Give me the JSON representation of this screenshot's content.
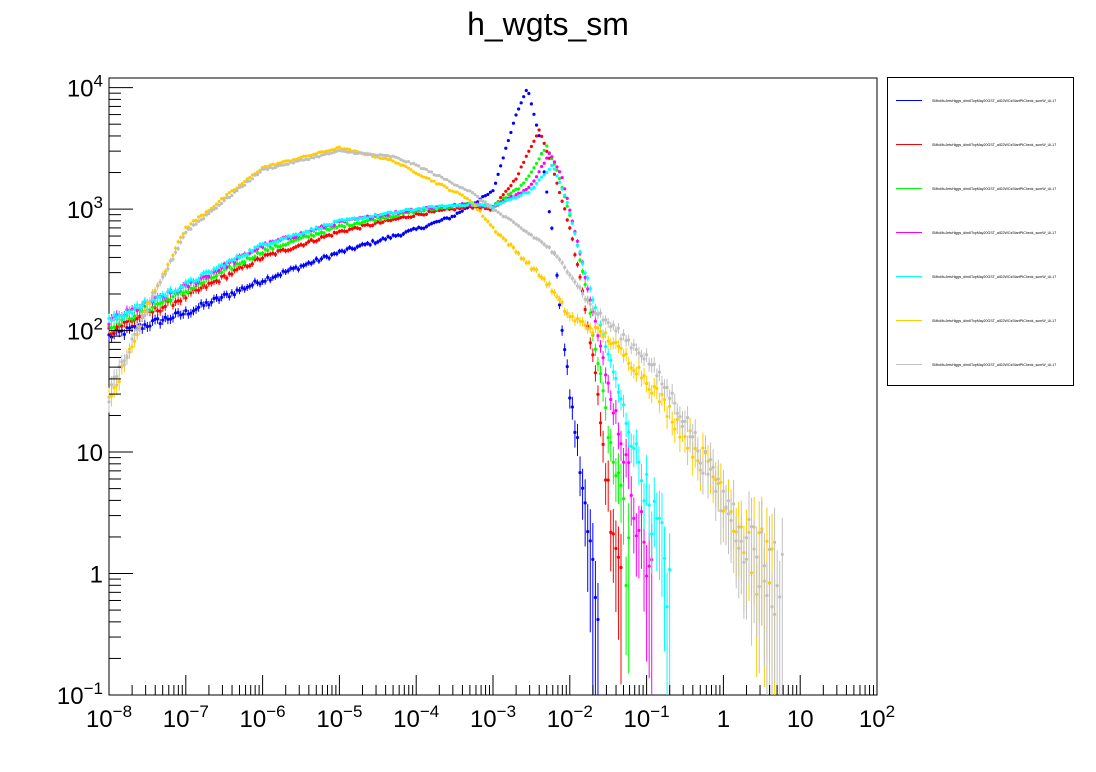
{
  "chart_data": {
    "type": "scatter",
    "title": "h_wgts_sm",
    "xlabel": "",
    "ylabel": "",
    "xscale": "log",
    "yscale": "log",
    "xlim": [
      1e-08,
      100
    ],
    "ylim": [
      0.1,
      12000
    ],
    "x_ticks": [
      {
        "value": 1e-08,
        "label": "10^-8"
      },
      {
        "value": 1e-07,
        "label": "10^-7"
      },
      {
        "value": 1e-06,
        "label": "10^-6"
      },
      {
        "value": 1e-05,
        "label": "10^-5"
      },
      {
        "value": 0.0001,
        "label": "10^-4"
      },
      {
        "value": 0.001,
        "label": "10^-3"
      },
      {
        "value": 0.01,
        "label": "10^-2"
      },
      {
        "value": 0.1,
        "label": "10^-1"
      },
      {
        "value": 1,
        "label": "1"
      },
      {
        "value": 10,
        "label": "10"
      },
      {
        "value": 100,
        "label": "10^2"
      }
    ],
    "y_ticks": [
      {
        "value": 0.1,
        "label": "10^-1"
      },
      {
        "value": 1,
        "label": "1"
      },
      {
        "value": 10,
        "label": "10"
      },
      {
        "value": 100,
        "label": "10^2"
      },
      {
        "value": 1000,
        "label": "10^3"
      },
      {
        "value": 10000,
        "label": "10^4"
      }
    ],
    "grid": false,
    "legend_position": "right",
    "series": [
      {
        "name": "SMtoMuJetsHiggs_dim6TopMay20GST_all22WCsStartPtCheck_sumW_UL17",
        "color": "#0000ff",
        "points": [
          [
            1e-08,
            90
          ],
          [
            1e-07,
            140
          ],
          [
            1e-06,
            260
          ],
          [
            1e-05,
            440
          ],
          [
            0.0001,
            680
          ],
          [
            0.0003,
            870
          ],
          [
            0.001,
            1400
          ],
          [
            0.002,
            6000
          ],
          [
            0.0028,
            10000
          ],
          [
            0.004,
            4000
          ],
          [
            0.006,
            600
          ],
          [
            0.008,
            100
          ],
          [
            0.01,
            30
          ],
          [
            0.013,
            10
          ],
          [
            0.016,
            3
          ],
          [
            0.02,
            1
          ],
          [
            0.025,
            1
          ]
        ]
      },
      {
        "name": "SMtoMuJetsHiggs_dim6TopMay20GST_all22WCsStartPtCheck_sumW_UL17",
        "color": "#ff0000",
        "points": [
          [
            1e-08,
            100
          ],
          [
            1e-07,
            190
          ],
          [
            1e-06,
            400
          ],
          [
            1e-05,
            650
          ],
          [
            0.0001,
            900
          ],
          [
            0.0005,
            1050
          ],
          [
            0.001,
            1000
          ],
          [
            0.002,
            1800
          ],
          [
            0.004,
            4500
          ],
          [
            0.006,
            2200
          ],
          [
            0.01,
            700
          ],
          [
            0.015,
            200
          ],
          [
            0.02,
            60
          ],
          [
            0.025,
            20
          ],
          [
            0.03,
            6
          ],
          [
            0.04,
            2
          ],
          [
            0.05,
            1
          ]
        ]
      },
      {
        "name": "SMtoMuJetsHiggs_dim6TopMay20GST_all22WCsStartPtCheck_sumW_UL17",
        "color": "#00ff00",
        "points": [
          [
            1e-08,
            110
          ],
          [
            1e-07,
            210
          ],
          [
            1e-06,
            450
          ],
          [
            1e-05,
            720
          ],
          [
            0.0001,
            960
          ],
          [
            0.0005,
            1100
          ],
          [
            0.001,
            1050
          ],
          [
            0.0025,
            1600
          ],
          [
            0.005,
            3300
          ],
          [
            0.007,
            2000
          ],
          [
            0.012,
            600
          ],
          [
            0.018,
            150
          ],
          [
            0.025,
            40
          ],
          [
            0.035,
            10
          ],
          [
            0.05,
            3
          ],
          [
            0.06,
            1
          ]
        ]
      },
      {
        "name": "SMtoMuJetsHiggs_dim6TopMay20GST_all22WCsStartPtCheck_sumW_UL17",
        "color": "#ff00ff",
        "points": [
          [
            1e-08,
            120
          ],
          [
            1e-07,
            230
          ],
          [
            1e-06,
            500
          ],
          [
            1e-05,
            780
          ],
          [
            0.0001,
            1000
          ],
          [
            0.0005,
            1100
          ],
          [
            0.001,
            1050
          ],
          [
            0.003,
            1500
          ],
          [
            0.0055,
            2900
          ],
          [
            0.008,
            1800
          ],
          [
            0.013,
            500
          ],
          [
            0.02,
            150
          ],
          [
            0.03,
            40
          ],
          [
            0.04,
            20
          ],
          [
            0.06,
            6
          ],
          [
            0.09,
            2
          ],
          [
            0.12,
            1
          ]
        ]
      },
      {
        "name": "SMtoMuJetsHiggs_dim6TopMay20GST_all22WCsStartPtCheck_sumW_UL17",
        "color": "#00ffff",
        "points": [
          [
            1e-08,
            120
          ],
          [
            1e-07,
            240
          ],
          [
            1e-06,
            510
          ],
          [
            1e-05,
            790
          ],
          [
            0.0001,
            1000
          ],
          [
            0.0005,
            1100
          ],
          [
            0.001,
            1050
          ],
          [
            0.003,
            1400
          ],
          [
            0.006,
            2300
          ],
          [
            0.009,
            1200
          ],
          [
            0.014,
            400
          ],
          [
            0.022,
            150
          ],
          [
            0.035,
            50
          ],
          [
            0.06,
            15
          ],
          [
            0.1,
            5
          ],
          [
            0.15,
            2
          ],
          [
            0.2,
            1
          ]
        ]
      },
      {
        "name": "SMtoMuJetsHiggs_dim6TopMay20GST_all22WCsStartPtCheck_sumW_UL17",
        "color": "#ffcc00",
        "points": [
          [
            1e-08,
            25
          ],
          [
            3e-08,
            150
          ],
          [
            1e-07,
            700
          ],
          [
            1e-06,
            2200
          ],
          [
            1e-05,
            3200
          ],
          [
            5e-05,
            2500
          ],
          [
            0.0001,
            2000
          ],
          [
            0.0005,
            1200
          ],
          [
            0.001,
            700
          ],
          [
            0.005,
            250
          ],
          [
            0.01,
            130
          ],
          [
            0.03,
            90
          ],
          [
            0.1,
            40
          ],
          [
            0.3,
            15
          ],
          [
            1,
            5
          ],
          [
            2,
            2
          ],
          [
            5,
            1
          ]
        ]
      },
      {
        "name": "SMtoMuJetsHiggs_dim6TopMay20GST_all22WCsStartPtCheck_sumW_UL17",
        "color": "#c0c0c0",
        "points": [
          [
            1e-08,
            30
          ],
          [
            3e-08,
            140
          ],
          [
            1e-07,
            650
          ],
          [
            1e-06,
            2100
          ],
          [
            1e-05,
            3000
          ],
          [
            5e-05,
            2700
          ],
          [
            0.0001,
            2300
          ],
          [
            0.0005,
            1400
          ],
          [
            0.001,
            1000
          ],
          [
            0.005,
            500
          ],
          [
            0.01,
            300
          ],
          [
            0.02,
            150
          ],
          [
            0.1,
            60
          ],
          [
            0.3,
            20
          ],
          [
            1,
            4
          ],
          [
            3,
            1.5
          ],
          [
            6,
            1
          ]
        ]
      }
    ]
  }
}
